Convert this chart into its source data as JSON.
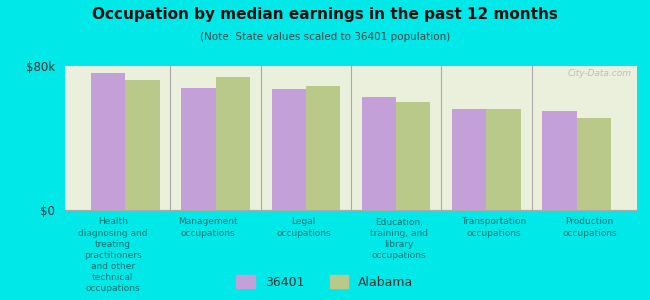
{
  "title": "Occupation by median earnings in the past 12 months",
  "subtitle": "(Note: State values scaled to 36401 population)",
  "background_color": "#00e8e8",
  "plot_bg_color": "#eaf0dc",
  "categories": [
    "Health\ndiagnosing and\ntreating\npractitioners\nand other\ntechnical\noccupations",
    "Management\noccupations",
    "Legal\noccupations",
    "Education,\ntraining, and\nlibrary\noccupations",
    "Transportation\noccupations",
    "Production\noccupations"
  ],
  "values_36401": [
    76000,
    68000,
    67000,
    63000,
    56000,
    55000
  ],
  "values_alabama": [
    72000,
    74000,
    69000,
    60000,
    56000,
    51000
  ],
  "color_36401": "#c4a0d8",
  "color_alabama": "#b8c98a",
  "ylim": [
    0,
    80000
  ],
  "ytick_labels": [
    "$0",
    "$80k"
  ],
  "legend_label_36401": "36401",
  "legend_label_alabama": "Alabama",
  "bar_width": 0.38,
  "watermark": "City-Data.com"
}
